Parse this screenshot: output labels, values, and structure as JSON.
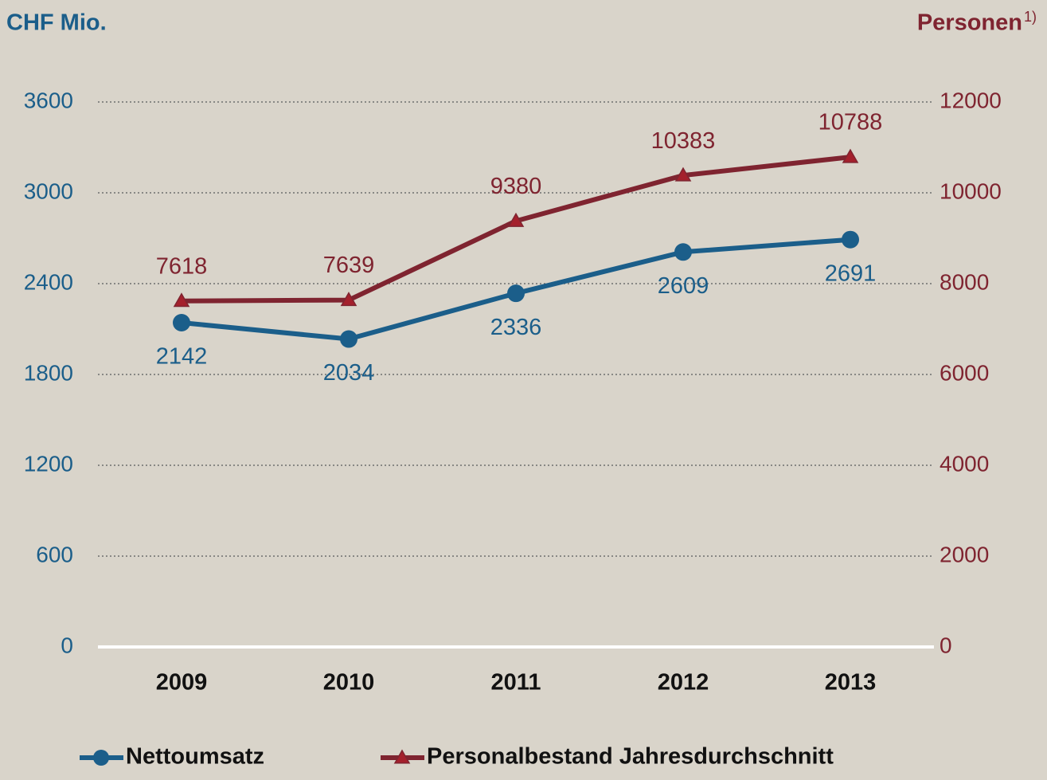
{
  "chart_data": {
    "type": "line",
    "y_label": "CHF Mio.",
    "y2_label": "Personen",
    "y2_label_note": "1)",
    "categories": [
      "2009",
      "2010",
      "2011",
      "2012",
      "2013"
    ],
    "series": [
      {
        "name": "Nettoumsatz",
        "color": "#1b5e8a",
        "marker": "circle",
        "values": [
          2142,
          2034,
          2336,
          2609,
          2691
        ]
      },
      {
        "name": "Personalbestand Jahresdurchschnitt",
        "color": "#7f2430",
        "marker": "triangle",
        "axis": "y2",
        "values": [
          7618,
          7639,
          9380,
          10383,
          10788
        ]
      }
    ],
    "ylim": [
      0,
      3600
    ],
    "yticks": [
      0,
      600,
      1200,
      1800,
      2400,
      3000,
      3600
    ],
    "y2lim": [
      0,
      12000
    ],
    "y2ticks": [
      0,
      2000,
      4000,
      6000,
      8000,
      10000,
      12000
    ],
    "grid": true
  }
}
